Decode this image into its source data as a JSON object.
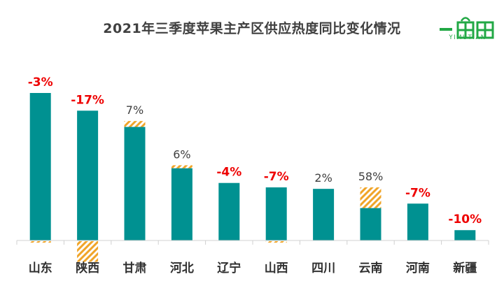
{
  "title": "2021年三季度苹果主产区供应热度同比变化情况",
  "logo": {
    "text": "YIMUTIAN",
    "color": "#22a845"
  },
  "colors": {
    "bar": "#009191",
    "hatch": "#f0a52a",
    "negative_label": "#ee0000",
    "positive_label": "#404040",
    "axis_label": "#303030"
  },
  "chart_data": {
    "type": "bar",
    "title": "2021年三季度苹果主产区供应热度同比变化情况",
    "xlabel": "",
    "ylabel": "",
    "ylim": [
      0,
      100
    ],
    "categories": [
      "山东",
      "陕西",
      "甘肃",
      "河北",
      "辽宁",
      "山西",
      "四川",
      "云南",
      "河南",
      "新疆"
    ],
    "values": [
      100,
      88,
      77,
      49,
      39,
      36,
      35,
      22,
      25,
      7
    ],
    "change_labels": [
      "-3%",
      "-17%",
      "7%",
      "6%",
      "-4%",
      "-7%",
      "2%",
      "58%",
      "-7%",
      "-10%"
    ],
    "hatch_segments": [
      {
        "category": "山东",
        "position": "below",
        "size": 1
      },
      {
        "category": "陕西",
        "position": "below",
        "size": 14
      },
      {
        "category": "甘肃",
        "position": "above",
        "size": 4
      },
      {
        "category": "河北",
        "position": "above",
        "size": 2
      },
      {
        "category": "山西",
        "position": "below",
        "size": 1
      },
      {
        "category": "云南",
        "position": "above",
        "size": 14
      }
    ],
    "legend": "none",
    "grid": false
  }
}
